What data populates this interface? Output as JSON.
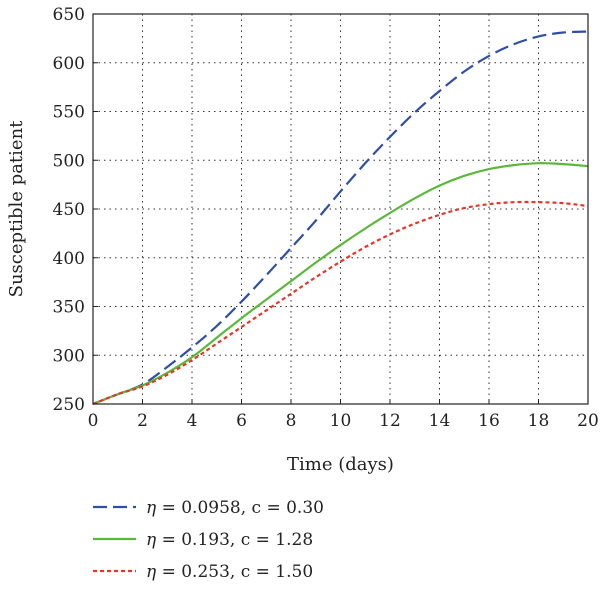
{
  "chart_data": {
    "type": "line",
    "xlabel": "Time (days)",
    "ylabel": "Susceptible patient",
    "xlim": [
      0,
      20
    ],
    "ylim": [
      250,
      650
    ],
    "xticks": [
      "0",
      "2",
      "4",
      "6",
      "8",
      "10",
      "12",
      "14",
      "16",
      "18",
      "20"
    ],
    "yticks": [
      "250",
      "300",
      "350",
      "400",
      "450",
      "500",
      "550",
      "600",
      "650"
    ],
    "grid": "dotted",
    "legend_position": "bottom",
    "series": [
      {
        "eta_symbol": "η",
        "name": " = 0.0958, c = 0.30",
        "color": "#2e4fa3",
        "dash": "dashed",
        "x": [
          0,
          1,
          2,
          3,
          4,
          5,
          6,
          7,
          8,
          9,
          10,
          11,
          12,
          13,
          14,
          15,
          16,
          17,
          18,
          19,
          20
        ],
        "y": [
          250,
          260,
          270,
          288,
          308,
          330,
          355,
          382,
          410,
          438,
          468,
          497,
          524,
          549,
          571,
          591,
          607,
          619,
          627,
          631,
          632
        ]
      },
      {
        "eta_symbol": "η",
        "name": " = 0.193, c = 1.28",
        "color": "#5ab93b",
        "dash": "solid",
        "x": [
          0,
          1,
          2,
          3,
          4,
          5,
          6,
          7,
          8,
          9,
          10,
          11,
          12,
          13,
          14,
          15,
          16,
          17,
          18,
          19,
          20
        ],
        "y": [
          250,
          260,
          269,
          282,
          298,
          318,
          338,
          357,
          376,
          395,
          413,
          430,
          446,
          461,
          474,
          484,
          491,
          495,
          497,
          496,
          494
        ]
      },
      {
        "eta_symbol": "η",
        "name": " = 0.253, c = 1.50",
        "color": "#e8352a",
        "dash": "dotted",
        "x": [
          0,
          1,
          2,
          3,
          4,
          5,
          6,
          7,
          8,
          9,
          10,
          11,
          12,
          13,
          14,
          15,
          16,
          17,
          18,
          19,
          20
        ],
        "y": [
          250,
          260,
          268,
          280,
          295,
          312,
          329,
          346,
          363,
          380,
          396,
          411,
          424,
          435,
          444,
          451,
          455,
          457,
          457,
          456,
          453
        ]
      }
    ]
  }
}
